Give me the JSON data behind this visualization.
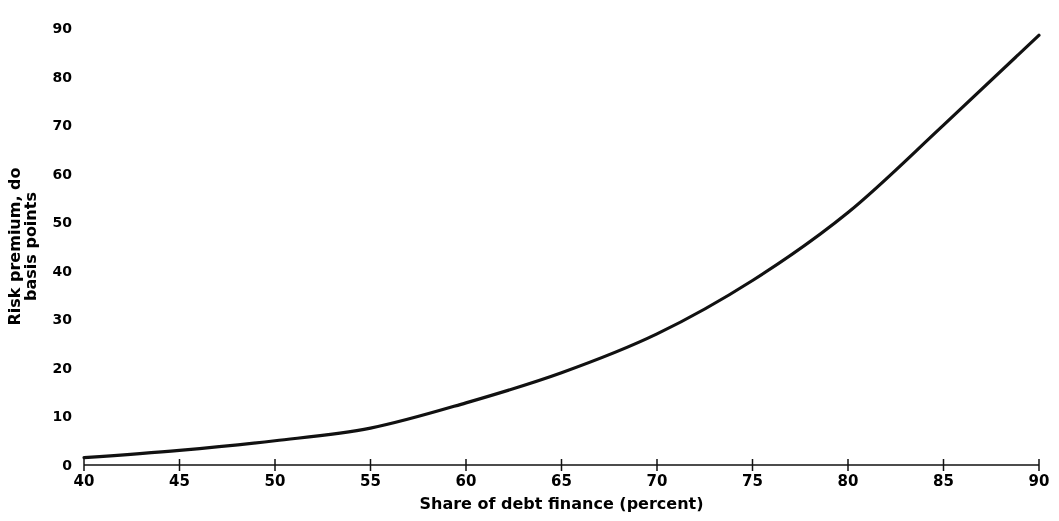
{
  "chart_data": {
    "type": "line",
    "xlabel": "Share of debt finance (percent)",
    "ylabel": "Risk premium, do basis points",
    "x": [
      40,
      45,
      50,
      55,
      60,
      65,
      70,
      75,
      80,
      85,
      90
    ],
    "series": [
      {
        "color": "#111111",
        "values": [
          1.5,
          3,
          5,
          7.6,
          12.8,
          19,
          27,
          38,
          52,
          70,
          88.5
        ]
      }
    ],
    "xlim": [
      40,
      90
    ],
    "xticks": [
      40,
      45,
      50,
      55,
      60,
      65,
      70,
      75,
      80,
      85,
      90
    ],
    "ylim": [
      0,
      90
    ],
    "yticks": [
      0,
      10,
      20,
      30,
      40,
      50,
      60,
      70,
      80,
      90
    ],
    "grid": false,
    "marker": "none",
    "line_style": "solid"
  }
}
